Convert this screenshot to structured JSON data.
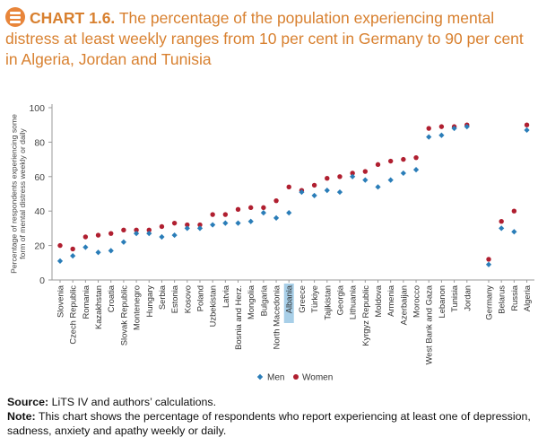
{
  "title": {
    "label": "CHART 1.6.",
    "text": "The percentage of the population experiencing mental distress at least weekly ranges from 10 per cent in Germany to 90 per cent in Algeria, Jordan and Tunisia"
  },
  "footer": {
    "source_label": "Source:",
    "source_text": "LiTS IV and authors’ calculations.",
    "note_label": "Note:",
    "note_text": "This chart shows the percentage of respondents who report experiencing at least one of depression, sadness, anxiety and apathy weekly or daily."
  },
  "colors": {
    "men": "#2a7db8",
    "women": "#b01f30",
    "title": "#d8802f",
    "highlight": "#a8cfe8"
  },
  "chart_data": {
    "type": "scatter",
    "ylabel": "Percentage of respondents experiencing some form of mental distress weekly or daily",
    "ylim": [
      0,
      100
    ],
    "yticks": [
      0,
      20,
      40,
      60,
      80,
      100
    ],
    "grid": false,
    "legend_position": "bottom-center",
    "highlighted_category": "Albania",
    "groups": [
      [
        "Slovenia",
        "Czech Republic",
        "Romania",
        "Kazakhstan",
        "Croatia",
        "Slovak Republic",
        "Montenegro",
        "Hungary",
        "Serbia",
        "Estonia",
        "Kosovo",
        "Poland",
        "Uzbekistan",
        "Latvia",
        "Bosnia and Herz.",
        "Mongolia",
        "Bulgaria",
        "North Macedonia",
        "Albania",
        "Greece",
        "Türkiye",
        "Tajikistan",
        "Georgia",
        "Lithuania",
        "Kyrgyz Republic",
        "Moldova",
        "Armenia",
        "Azerbaijan",
        "Morocco",
        "West Bank and Gaza",
        "Lebanon",
        "Tunisia",
        "Jordan"
      ],
      [
        "Germany",
        "Belarus",
        "Russia",
        "Algeria"
      ]
    ],
    "categories": [
      "Slovenia",
      "Czech Republic",
      "Romania",
      "Kazakhstan",
      "Croatia",
      "Slovak Republic",
      "Montenegro",
      "Hungary",
      "Serbia",
      "Estonia",
      "Kosovo",
      "Poland",
      "Uzbekistan",
      "Latvia",
      "Bosnia and Herz.",
      "Mongolia",
      "Bulgaria",
      "North Macedonia",
      "Albania",
      "Greece",
      "Türkiye",
      "Tajikistan",
      "Georgia",
      "Lithuania",
      "Kyrgyz Republic",
      "Moldova",
      "Armenia",
      "Azerbaijan",
      "Morocco",
      "West Bank and Gaza",
      "Lebanon",
      "Tunisia",
      "Jordan",
      "Germany",
      "Belarus",
      "Russia",
      "Algeria"
    ],
    "series": [
      {
        "name": "Men",
        "marker": "diamond",
        "values": [
          11,
          14,
          19,
          16,
          17,
          22,
          27,
          27,
          25,
          26,
          30,
          30,
          32,
          33,
          33,
          34,
          39,
          36,
          39,
          51,
          49,
          52,
          51,
          60,
          58,
          54,
          58,
          62,
          64,
          83,
          84,
          88,
          89,
          9,
          30,
          28,
          87
        ]
      },
      {
        "name": "Women",
        "marker": "circle",
        "values": [
          20,
          18,
          25,
          26,
          27,
          29,
          29,
          29,
          31,
          33,
          32,
          32,
          38,
          38,
          41,
          42,
          42,
          46,
          54,
          52,
          55,
          59,
          60,
          62,
          63,
          67,
          69,
          70,
          71,
          88,
          89,
          89,
          90,
          12,
          34,
          40,
          90
        ]
      }
    ]
  }
}
